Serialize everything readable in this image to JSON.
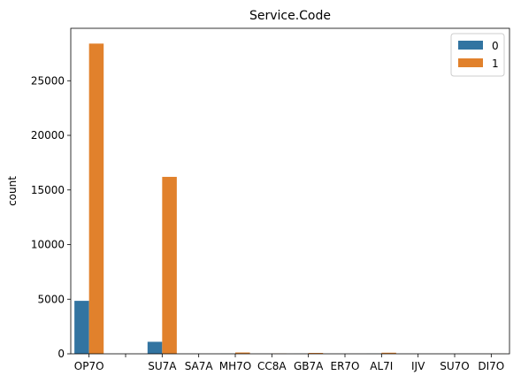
{
  "chart_data": {
    "type": "bar",
    "title": "Service.Code",
    "xlabel": "",
    "ylabel": "count",
    "categories": [
      "OP7O",
      "",
      "SU7A",
      "SA7A",
      "MH7O",
      "CC8A",
      "GB7A",
      "ER7O",
      "AL7I",
      "IJV",
      "SU7O",
      "DI7O"
    ],
    "series": [
      {
        "name": "0",
        "color": "#3274a1",
        "values": [
          4850,
          0,
          1100,
          0,
          10,
          0,
          5,
          0,
          10,
          0,
          0,
          0
        ]
      },
      {
        "name": "1",
        "color": "#e1812c",
        "values": [
          28400,
          0,
          16200,
          0,
          120,
          20,
          80,
          0,
          100,
          0,
          0,
          10
        ]
      }
    ],
    "ylim": [
      0,
      29800
    ],
    "yticks": [
      0,
      5000,
      10000,
      15000,
      20000,
      25000
    ],
    "grid": false,
    "legend_position": "top-right"
  }
}
